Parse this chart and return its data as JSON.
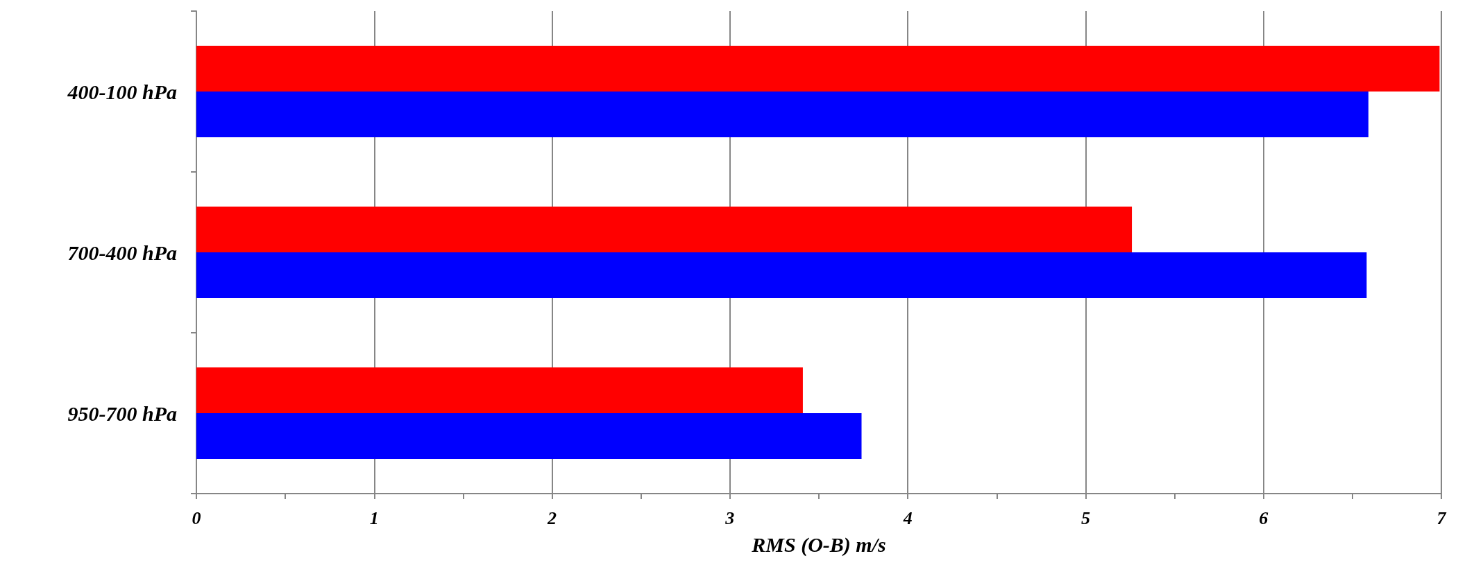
{
  "chart_data": {
    "type": "bar",
    "orientation": "horizontal",
    "xlabel": "RMS (O-B) m/s",
    "categories": [
      "400-100 hPa",
      "700-400 hPa",
      "950-700 hPa"
    ],
    "series": [
      {
        "color": "#ff0000",
        "values": [
          6.99,
          5.26,
          3.41
        ]
      },
      {
        "color": "#0000ff",
        "values": [
          6.59,
          6.58,
          3.74
        ]
      }
    ],
    "xlim": [
      0,
      7
    ],
    "xticks": [
      0,
      {
        "value": 0.5,
        "label": null
      },
      1,
      {
        "value": 1.5,
        "label": null
      },
      2,
      {
        "value": 2.5,
        "label": null
      },
      3,
      {
        "value": 3.5,
        "label": null
      },
      4,
      {
        "value": 4.5,
        "label": null
      },
      5,
      {
        "value": 5.5,
        "label": null
      },
      6,
      {
        "value": 6.5,
        "label": null
      },
      7
    ],
    "grid": "x"
  }
}
